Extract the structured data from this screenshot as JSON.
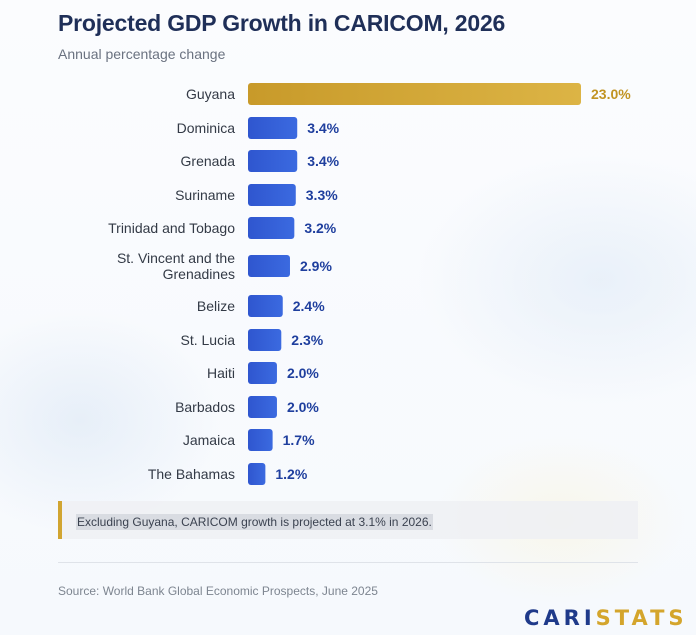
{
  "title": "Projected GDP Growth in CARICOM, 2026",
  "subtitle": "Annual percentage change",
  "note": "Excluding Guyana, CARICOM growth is projected at 3.1% in 2026.",
  "source": "Source: World Bank Global Economic Prospects, June 2025",
  "logo": {
    "part1": "CARI",
    "part2": "STATS"
  },
  "colors": {
    "highlight_bar": "#d1a531",
    "highlight_label": "#c19422",
    "bar": "#2c5bd6",
    "value_label": "#1f3f9e",
    "category_label": "#333a46",
    "logo_primary": "#1f3a8a",
    "logo_accent": "#d4a52c"
  },
  "chart_data": {
    "type": "bar",
    "orientation": "horizontal",
    "title": "Projected GDP Growth in CARICOM, 2026",
    "subtitle": "Annual percentage change",
    "categories": [
      "Guyana",
      "Dominica",
      "Grenada",
      "Suriname",
      "Trinidad and Tobago",
      "St. Vincent and the Grenadines",
      "Belize",
      "St. Lucia",
      "Haiti",
      "Barbados",
      "Jamaica",
      "The Bahamas"
    ],
    "category_lines": [
      [
        "Guyana"
      ],
      [
        "Dominica"
      ],
      [
        "Grenada"
      ],
      [
        "Suriname"
      ],
      [
        "Trinidad and Tobago"
      ],
      [
        "St. Vincent and the",
        "Grenadines"
      ],
      [
        "Belize"
      ],
      [
        "St. Lucia"
      ],
      [
        "Haiti"
      ],
      [
        "Barbados"
      ],
      [
        "Jamaica"
      ],
      [
        "The Bahamas"
      ]
    ],
    "values": [
      23.0,
      3.4,
      3.4,
      3.3,
      3.2,
      2.9,
      2.4,
      2.3,
      2.0,
      2.0,
      1.7,
      1.2
    ],
    "value_labels": [
      "23.0%",
      "3.4%",
      "3.4%",
      "3.3%",
      "3.2%",
      "2.9%",
      "2.4%",
      "2.3%",
      "2.0%",
      "2.0%",
      "1.7%",
      "1.2%"
    ],
    "highlight": "Guyana",
    "xlim": [
      0,
      23.0
    ],
    "xlabel": "",
    "ylabel": "",
    "grid": false,
    "legend": "none"
  }
}
